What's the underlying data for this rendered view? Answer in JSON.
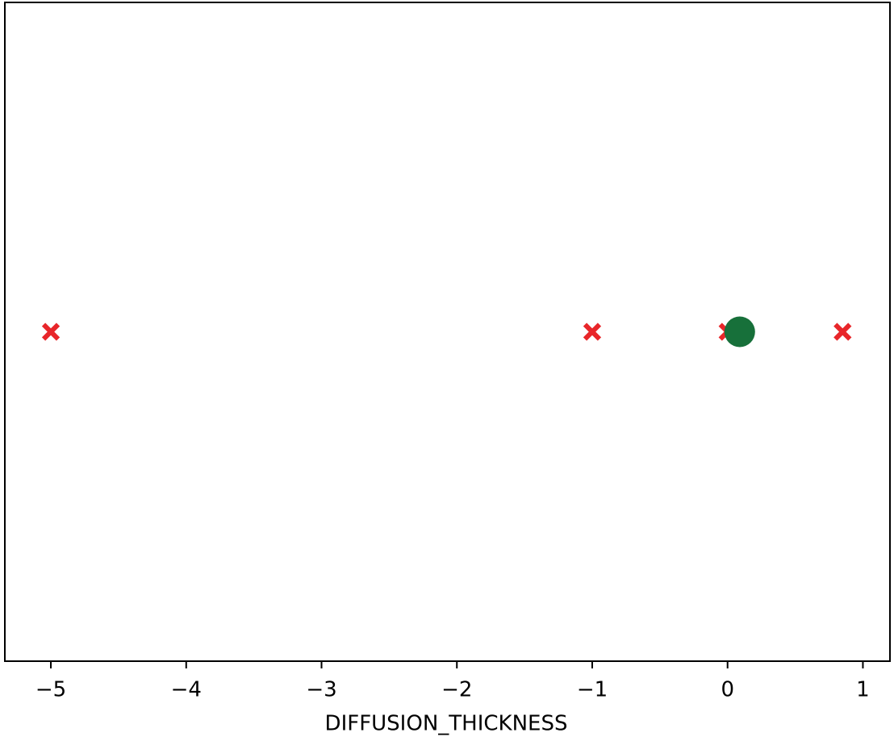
{
  "chart_data": {
    "type": "scatter",
    "x_label": "DIFFUSION_THICKNESS",
    "xlim": [
      -5.34,
      1.2
    ],
    "ylim": [
      -0.055,
      0.055
    ],
    "xticks": [
      {
        "value": -5,
        "label": "−5"
      },
      {
        "value": -4,
        "label": "−4"
      },
      {
        "value": -3,
        "label": "−3"
      },
      {
        "value": -2,
        "label": "−2"
      },
      {
        "value": -1,
        "label": "−1"
      },
      0,
      1
    ],
    "series": [
      {
        "color": "#e8262a",
        "marker": "x",
        "x": [
          -5,
          -1,
          0,
          0.85
        ],
        "y": [
          0,
          0,
          0,
          0
        ]
      },
      {
        "color": "#17703a",
        "marker": "o",
        "x": [
          0.09
        ],
        "y": [
          0
        ]
      }
    ]
  }
}
